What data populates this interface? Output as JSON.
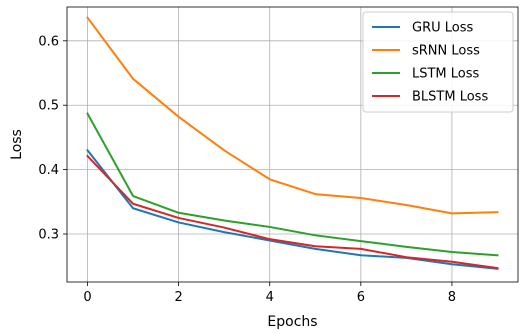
{
  "chart_data": {
    "type": "line",
    "xlabel": "Epochs",
    "ylabel": "Loss",
    "xlim": [
      -0.45,
      9.45
    ],
    "ylim": [
      0.2255,
      0.6525
    ],
    "xticks": [
      0,
      2,
      4,
      6,
      8
    ],
    "yticks": [
      0.3,
      0.4,
      0.5,
      0.6
    ],
    "xtick_labels": [
      "0",
      "2",
      "4",
      "6",
      "8"
    ],
    "ytick_labels": [
      "0.3",
      "0.4",
      "0.5",
      "0.6"
    ],
    "grid": true,
    "legend_position": "top-right",
    "x": [
      0,
      1,
      2,
      3,
      4,
      5,
      6,
      7,
      8,
      9
    ],
    "series": [
      {
        "name": "GRU Loss",
        "color": "#1f77b4",
        "values": [
          0.43,
          0.34,
          0.318,
          0.303,
          0.29,
          0.277,
          0.267,
          0.263,
          0.253,
          0.246
        ]
      },
      {
        "name": "sRNN Loss",
        "color": "#ff7f0e",
        "values": [
          0.636,
          0.541,
          0.482,
          0.43,
          0.385,
          0.362,
          0.356,
          0.345,
          0.332,
          0.334
        ]
      },
      {
        "name": "LSTM Loss",
        "color": "#2ca02c",
        "values": [
          0.487,
          0.359,
          0.333,
          0.321,
          0.311,
          0.298,
          0.289,
          0.28,
          0.272,
          0.267
        ]
      },
      {
        "name": "BLSTM Loss",
        "color": "#d62728",
        "values": [
          0.421,
          0.347,
          0.325,
          0.31,
          0.292,
          0.281,
          0.277,
          0.264,
          0.257,
          0.247
        ]
      }
    ]
  }
}
